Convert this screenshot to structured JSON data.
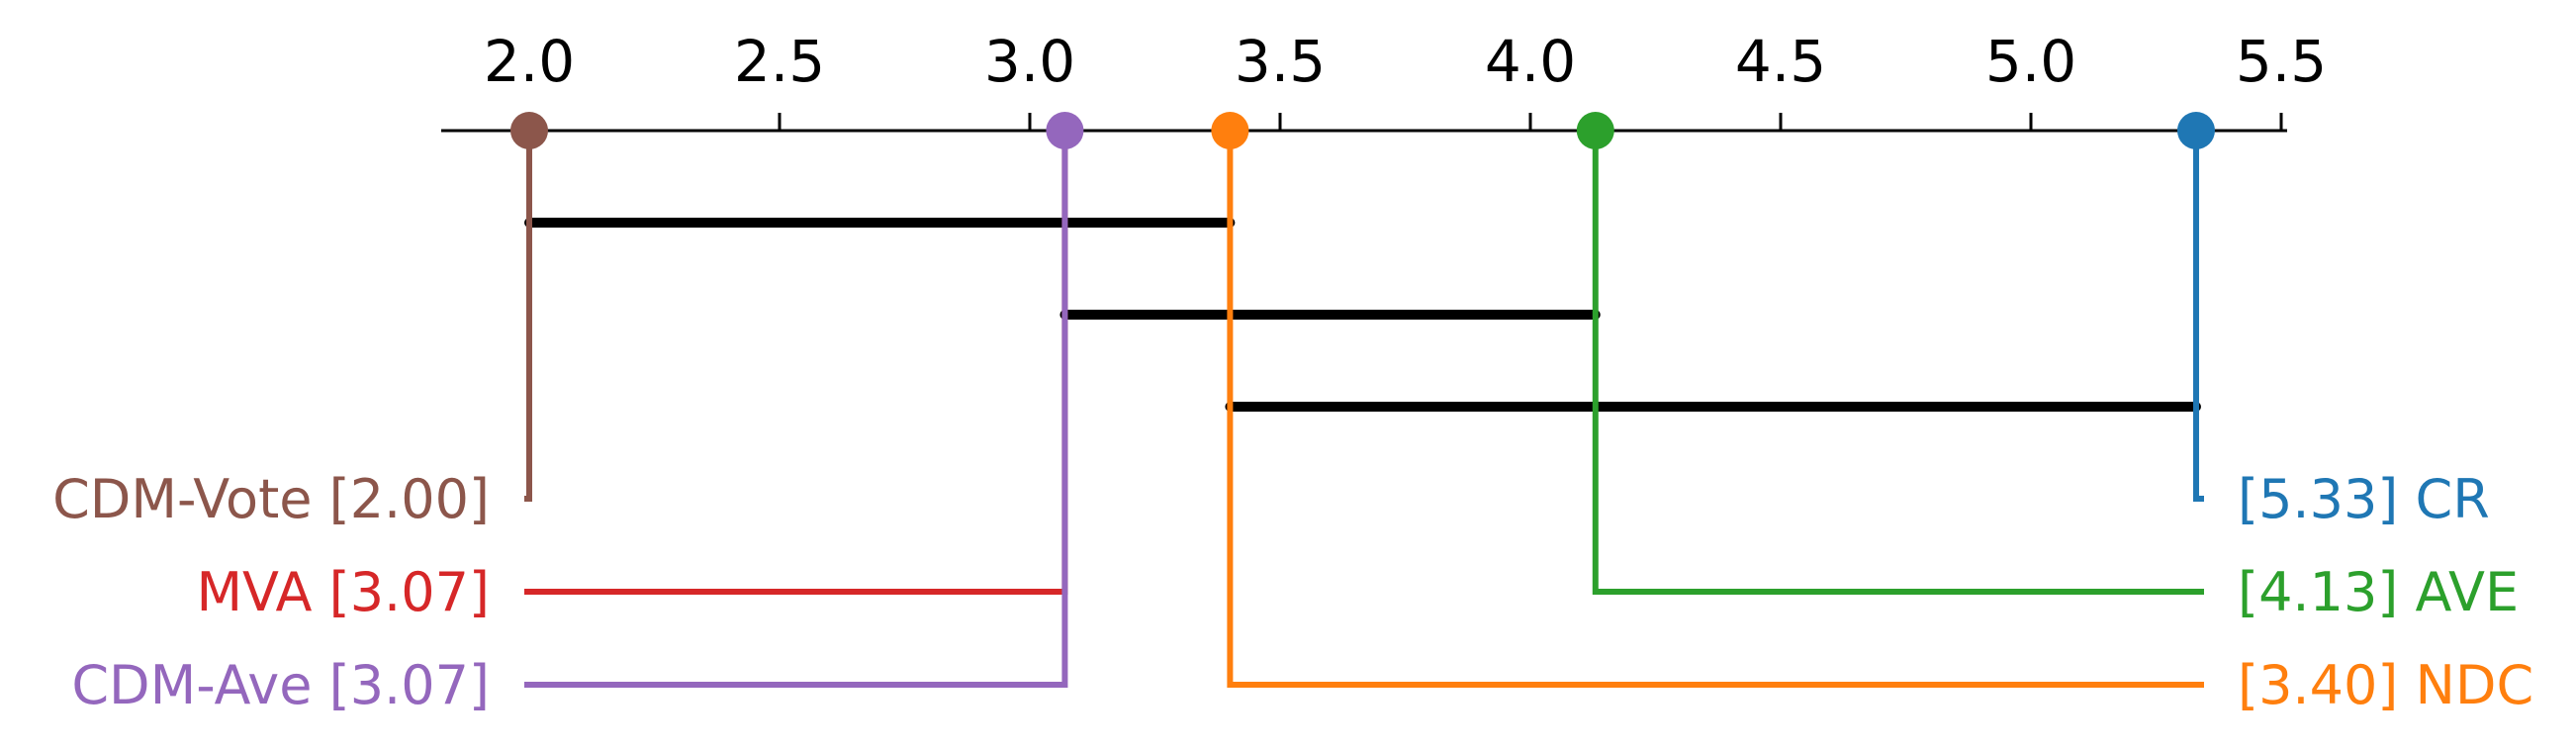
{
  "chart_data": {
    "type": "critical-difference",
    "title": "",
    "xlabel": "",
    "ylabel": "",
    "xlim": [
      1.82,
      5.5
    ],
    "ticks": [
      {
        "value": 2.0,
        "label": "2.0"
      },
      {
        "value": 2.5,
        "label": "2.5"
      },
      {
        "value": 3.0,
        "label": "3.0"
      },
      {
        "value": 3.5,
        "label": "3.5"
      },
      {
        "value": 4.0,
        "label": "4.0"
      },
      {
        "value": 4.5,
        "label": "4.5"
      },
      {
        "value": 5.0,
        "label": "5.0"
      },
      {
        "value": 5.5,
        "label": "5.5"
      }
    ],
    "methods": [
      {
        "name": "CDM-Vote",
        "rank": 2.0,
        "label": "CDM-Vote [2.00]",
        "side": "left",
        "color": "#8c564b",
        "marker": true
      },
      {
        "name": "MVA",
        "rank": 3.07,
        "label": "MVA [3.07]",
        "side": "left",
        "color": "#d62728",
        "marker": false
      },
      {
        "name": "CDM-Ave",
        "rank": 3.07,
        "label": "CDM-Ave [3.07]",
        "side": "left",
        "color": "#9467bd",
        "marker": true
      },
      {
        "name": "CR",
        "rank": 5.33,
        "label": "[5.33] CR",
        "side": "right",
        "color": "#1f77b4",
        "marker": true
      },
      {
        "name": "AVE",
        "rank": 4.13,
        "label": "[4.13] AVE",
        "side": "right",
        "color": "#2ca02c",
        "marker": true
      },
      {
        "name": "NDC",
        "rank": 3.4,
        "label": "[3.40] NDC",
        "side": "right",
        "color": "#ff7f0e",
        "marker": true
      }
    ],
    "cliques": [
      {
        "from": 2.0,
        "to": 3.4
      },
      {
        "from": 3.07,
        "to": 4.13
      },
      {
        "from": 3.4,
        "to": 5.33
      }
    ]
  }
}
